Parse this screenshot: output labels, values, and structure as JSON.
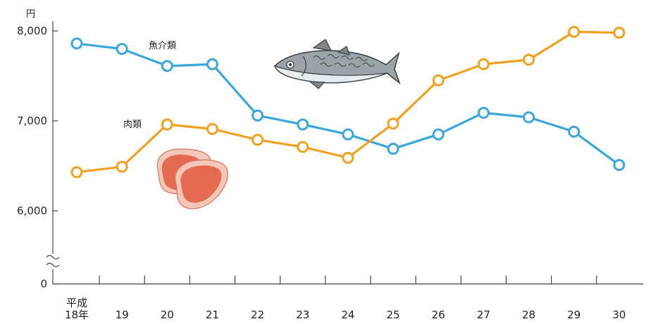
{
  "chart_data": {
    "type": "line",
    "title": "",
    "xlabel": "",
    "ylabel": "",
    "y_unit": "円",
    "categories": [
      "平成\n18年",
      "19",
      "20",
      "21",
      "22",
      "23",
      "24",
      "25",
      "26",
      "27",
      "28",
      "29",
      "30"
    ],
    "y_ticks": [
      "0",
      "6,000",
      "7,000",
      "8,000"
    ],
    "y_tick_values": [
      0,
      6000,
      7000,
      8000
    ],
    "ylim": [
      0,
      8000
    ],
    "axis_break": true,
    "grid": false,
    "series": [
      {
        "name": "魚介類",
        "color": "#3aa6dc",
        "values": [
          7860,
          7800,
          7610,
          7630,
          7060,
          6960,
          6850,
          6690,
          6850,
          7090,
          7040,
          6880,
          6510
        ]
      },
      {
        "name": "肉類",
        "color": "#f0a01e",
        "values": [
          6430,
          6490,
          6960,
          6910,
          6790,
          6710,
          6590,
          6970,
          7450,
          7630,
          7680,
          7990,
          7980
        ]
      }
    ],
    "icons": [
      "fish-illustration",
      "meat-illustration"
    ]
  }
}
